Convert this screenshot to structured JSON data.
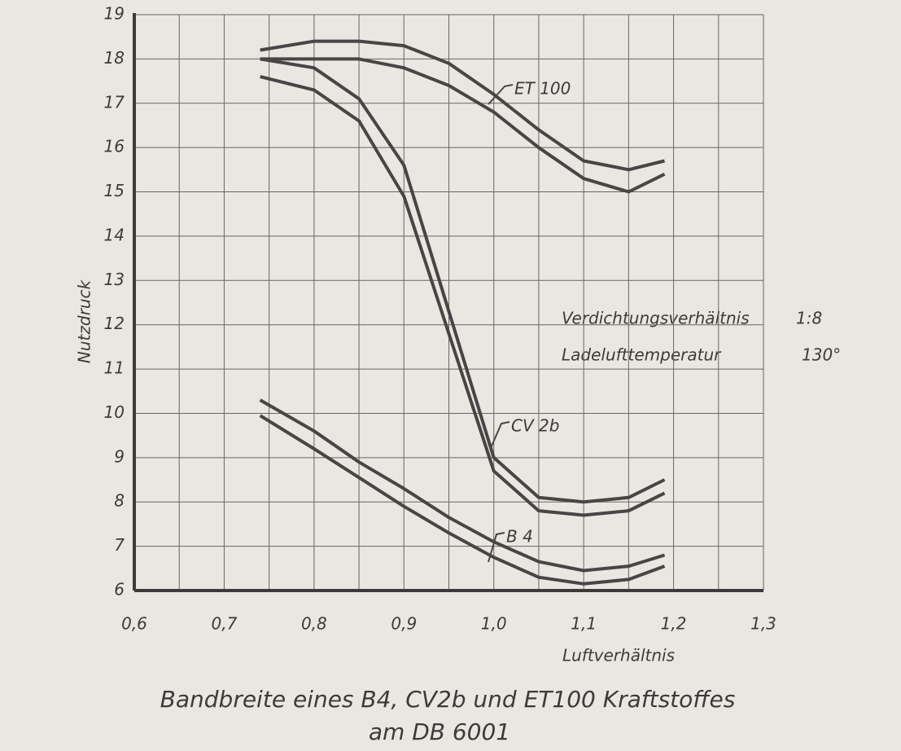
{
  "chart_data": {
    "type": "line",
    "title": "Bandbreite eines B4, CV2b und ET100 Kraftstoffes",
    "subtitle": "am DB 6001",
    "x_label": "Luftverhältnis",
    "y_label": "Nutzdruck",
    "annotations": [
      "Verdichtungsverhältnis",
      "1:8",
      "Ladelufttemperatur",
      "130°"
    ],
    "x": [
      0.74,
      0.8,
      0.85,
      0.9,
      0.95,
      1.0,
      1.05,
      1.1,
      1.15,
      1.19
    ],
    "series": [
      {
        "name": "ET 100",
        "color": "#4a4446",
        "upper": [
          18.2,
          18.4,
          18.4,
          18.3,
          17.9,
          17.2,
          16.4,
          15.7,
          15.5,
          15.7
        ],
        "lower": [
          18.0,
          18.0,
          18.0,
          17.8,
          17.4,
          16.8,
          16.0,
          15.3,
          15.0,
          15.4
        ]
      },
      {
        "name": "CV 2b",
        "color": "#4a4446",
        "upper": [
          18.0,
          17.8,
          17.1,
          15.6,
          12.3,
          9.0,
          8.1,
          8.0,
          8.1,
          8.5
        ],
        "lower": [
          17.6,
          17.3,
          16.6,
          14.9,
          11.8,
          8.7,
          7.8,
          7.7,
          7.8,
          8.2
        ]
      },
      {
        "name": "B 4",
        "color": "#4a4446",
        "upper": [
          10.3,
          9.6,
          8.9,
          8.3,
          7.65,
          7.1,
          6.65,
          6.45,
          6.55,
          6.8
        ],
        "lower": [
          9.95,
          9.2,
          8.55,
          7.9,
          7.3,
          6.75,
          6.3,
          6.15,
          6.25,
          6.55
        ]
      }
    ],
    "xlim": [
      0.6,
      1.3
    ],
    "ylim": [
      6,
      19
    ],
    "xticks": [
      {
        "value": 0.6,
        "label": "0,6"
      },
      {
        "value": 0.7,
        "label": "0,7"
      },
      {
        "value": 0.8,
        "label": "0,8"
      },
      {
        "value": 0.9,
        "label": "0,9"
      },
      {
        "value": 1.0,
        "label": "1,0"
      },
      {
        "value": 1.1,
        "label": "1,1"
      },
      {
        "value": 1.2,
        "label": "1,2"
      },
      {
        "value": 1.3,
        "label": "1,3"
      }
    ],
    "xgrid": [
      0.65,
      0.75,
      0.85,
      0.95,
      1.05,
      1.15,
      1.25
    ],
    "yticks": [
      6,
      7,
      8,
      9,
      10,
      11,
      12,
      13,
      14,
      15,
      16,
      17,
      18,
      19
    ],
    "grid": true
  }
}
